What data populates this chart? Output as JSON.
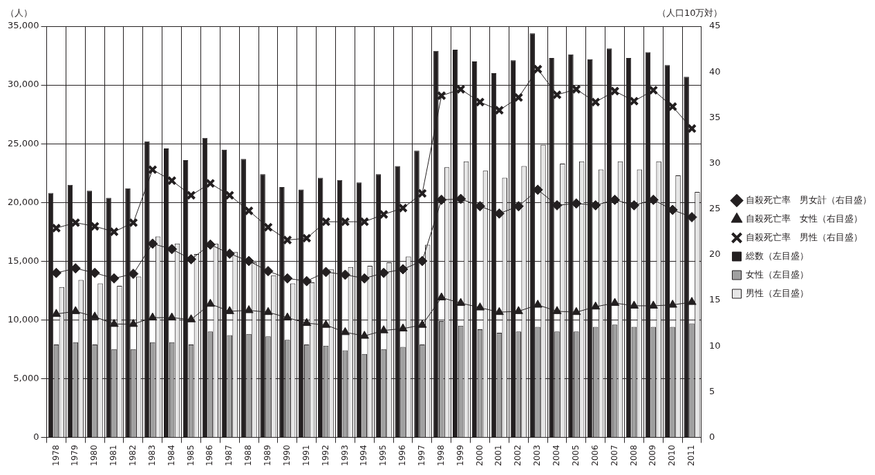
{
  "chart_data": {
    "type": "bar",
    "ylabel": "（人）",
    "y2label": "（人口10万対）",
    "categories": [
      "1978",
      "1979",
      "1980",
      "1981",
      "1982",
      "1983",
      "1984",
      "1985",
      "1986",
      "1987",
      "1988",
      "1989",
      "1990",
      "1991",
      "1992",
      "1993",
      "1994",
      "1995",
      "1996",
      "1997",
      "1998",
      "1999",
      "2000",
      "2001",
      "2002",
      "2003",
      "2004",
      "2005",
      "2006",
      "2007",
      "2008",
      "2009",
      "2010",
      "2011"
    ],
    "series": [
      {
        "name": "総数（左目盛）",
        "color": "#231f20",
        "values": [
          20800,
          21500,
          21000,
          20400,
          21200,
          25200,
          24600,
          23600,
          25500,
          24500,
          23700,
          22400,
          21300,
          21100,
          22100,
          21900,
          21700,
          22400,
          23100,
          24400,
          32900,
          33000,
          32000,
          31000,
          32100,
          34400,
          32300,
          32600,
          32200,
          33100,
          32300,
          32800,
          31700,
          30700
        ]
      },
      {
        "name": "女性（左目盛）",
        "color": "#a0a0a0",
        "values": [
          7900,
          8100,
          7900,
          7500,
          7500,
          8100,
          8100,
          7900,
          9000,
          8700,
          8800,
          8600,
          8300,
          7900,
          7800,
          7400,
          7100,
          7500,
          7700,
          7900,
          9900,
          9500,
          9200,
          8900,
          9000,
          9400,
          9000,
          9000,
          9400,
          9600,
          9400,
          9400,
          9400,
          9700
        ]
      },
      {
        "name": "男性（左目盛）",
        "color": "#e6e6e6",
        "values": [
          12800,
          13400,
          13100,
          12900,
          13700,
          17100,
          16500,
          15600,
          16500,
          15800,
          14900,
          13800,
          13100,
          13200,
          14300,
          14500,
          14600,
          14900,
          15400,
          16400,
          23000,
          23500,
          22700,
          22100,
          23100,
          24900,
          23300,
          23500,
          22800,
          23500,
          22800,
          23500,
          22300,
          20900
        ]
      },
      {
        "name": "自殺死亡率　男女計（右目盛）",
        "type": "line",
        "axis": "y2",
        "marker": "diamond",
        "color": "#231f20",
        "values": [
          18.0,
          18.5,
          18.0,
          17.4,
          17.9,
          21.2,
          20.6,
          19.5,
          21.1,
          20.1,
          19.3,
          18.2,
          17.4,
          17.1,
          18.1,
          17.8,
          17.4,
          18.0,
          18.4,
          19.3,
          26.0,
          26.1,
          25.3,
          24.5,
          25.3,
          27.1,
          25.4,
          25.6,
          25.4,
          26.0,
          25.4,
          26.0,
          24.9,
          24.1
        ]
      },
      {
        "name": "自殺死亡率　女性（右目盛）",
        "type": "line",
        "axis": "y2",
        "marker": "triangle",
        "color": "#231f20",
        "values": [
          13.5,
          13.8,
          13.2,
          12.4,
          12.4,
          13.1,
          13.1,
          12.9,
          14.6,
          13.8,
          13.9,
          13.7,
          13.1,
          12.5,
          12.3,
          11.5,
          11.1,
          11.7,
          11.9,
          12.3,
          15.3,
          14.7,
          14.2,
          13.7,
          13.8,
          14.5,
          13.8,
          13.7,
          14.3,
          14.7,
          14.4,
          14.4,
          14.5,
          14.8
        ]
      },
      {
        "name": "自殺死亡率　男性（右目盛）",
        "type": "line",
        "axis": "y2",
        "marker": "cross",
        "color": "#231f20",
        "values": [
          22.9,
          23.5,
          23.1,
          22.5,
          23.5,
          29.3,
          28.1,
          26.5,
          27.8,
          26.5,
          24.8,
          23.0,
          21.6,
          21.8,
          23.6,
          23.6,
          23.6,
          24.4,
          25.1,
          26.7,
          37.4,
          38.1,
          36.7,
          35.8,
          37.2,
          40.3,
          37.5,
          38.1,
          36.7,
          37.9,
          36.8,
          38.0,
          36.2,
          33.8
        ]
      }
    ],
    "ylim": [
      0,
      35000
    ],
    "yticks": [
      0,
      {
        "value": 5000,
        "label": "5,000"
      },
      {
        "value": 10000,
        "label": "10,000"
      },
      {
        "value": 15000,
        "label": "15,000"
      },
      {
        "value": 20000,
        "label": "20,000"
      },
      {
        "value": 25000,
        "label": "25,000"
      },
      {
        "value": 30000,
        "label": "30,000"
      },
      {
        "value": 35000,
        "label": "35,000"
      }
    ],
    "y2lim": [
      0,
      45
    ],
    "y2ticks": [
      0,
      5,
      10,
      15,
      20,
      25,
      30,
      35,
      40,
      45
    ],
    "grid": true,
    "legend": "right",
    "line_style": "solid"
  }
}
